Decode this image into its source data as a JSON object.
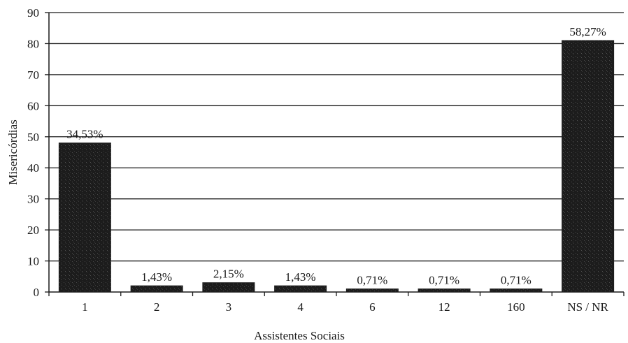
{
  "chart_data": {
    "type": "bar",
    "categories": [
      "1",
      "2",
      "3",
      "4",
      "6",
      "12",
      "160",
      "NS / NR"
    ],
    "values": [
      48,
      2,
      3,
      2,
      1,
      1,
      1,
      81
    ],
    "data_labels": [
      "34,53%",
      "1,43%",
      "2,15%",
      "1,43%",
      "0,71%",
      "0,71%",
      "0,71%",
      "58,27%"
    ],
    "title": "",
    "xlabel": "Assistentes Sociais",
    "ylabel": "Misericórdias",
    "ylim": [
      0,
      90
    ],
    "yticks": [
      0,
      10,
      20,
      30,
      40,
      50,
      60,
      70,
      80,
      90
    ],
    "grid": true,
    "bar_color": "#1c1c1c"
  }
}
